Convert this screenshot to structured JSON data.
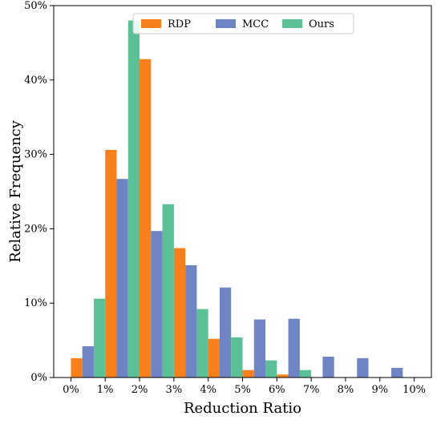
{
  "chart_data": {
    "type": "bar",
    "xlabel": "Reduction Ratio",
    "ylabel": "Relative Frequency",
    "x_ticks": [
      "0%",
      "1%",
      "2%",
      "3%",
      "4%",
      "5%",
      "6%",
      "7%",
      "8%",
      "9%",
      "10%"
    ],
    "y_ticks": [
      "0%",
      "10%",
      "20%",
      "30%",
      "40%",
      "50%"
    ],
    "xlim": [
      0,
      10
    ],
    "ylim": [
      0,
      50
    ],
    "bin_edges": [
      0,
      1,
      2,
      3,
      4,
      5,
      6,
      7,
      8,
      9,
      10
    ],
    "bin_width": 1,
    "legend_position": "top-center",
    "series": [
      {
        "name": "RDP",
        "color": "#f77f1c",
        "values": [
          2.6,
          30.6,
          42.8,
          17.4,
          5.2,
          1.0,
          0.4,
          0,
          0,
          0
        ]
      },
      {
        "name": "MCC",
        "color": "#6f84c4",
        "values": [
          4.2,
          26.7,
          19.7,
          15.1,
          12.1,
          7.8,
          7.9,
          2.8,
          2.6,
          1.3
        ]
      },
      {
        "name": "Ours",
        "color": "#5cc096",
        "values": [
          10.6,
          48.0,
          23.3,
          9.2,
          5.4,
          2.3,
          1.0,
          0,
          0,
          0
        ]
      }
    ]
  }
}
